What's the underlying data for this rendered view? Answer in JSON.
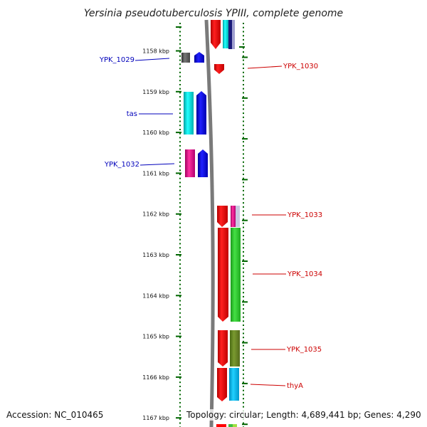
{
  "title": "Yersinia pseudotuberculosis YPIII, complete genome",
  "footer": {
    "accession": "Accession: NC_010465",
    "topology": "Topology: circular; Length: 4,689,441 bp; Genes: 4,290"
  },
  "ruler": [
    "1158 kbp",
    "1159 kbp",
    "1160 kbp",
    "1161 kbp",
    "1162 kbp",
    "1163 kbp",
    "1164 kbp",
    "1165 kbp",
    "1166 kbp",
    "1167 kbp"
  ],
  "gene_labels": {
    "YPK_1029": "YPK_1029",
    "tas": "tas",
    "YPK_1032": "YPK_1032",
    "YPK_1030": "YPK_1030",
    "YPK_1033": "YPK_1033",
    "YPK_1034": "YPK_1034",
    "YPK_1035": "YPK_1035",
    "thyA": "thyA"
  },
  "colors": {
    "label_left": "#0000bb",
    "label_right": "#cc0000",
    "tick": "#006600",
    "backbone": "#808080",
    "red": "#ff0000",
    "blue": "#0000ff",
    "cyan": "#00e5e5",
    "magenta": "#e0108a",
    "green": "#2ecc2e",
    "olive": "#6b8e23",
    "sky": "#00bfff",
    "gray": "#555555"
  }
}
